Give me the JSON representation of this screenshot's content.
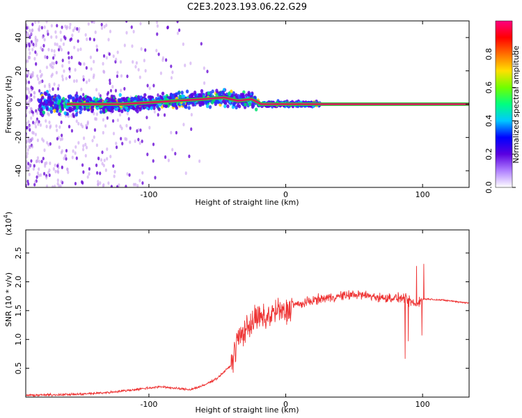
{
  "title": "C2E3.2023.193.06.22.G29",
  "colors": {
    "snr_line": "#ee3333",
    "freq_line_core": "#e0115f",
    "freq_line_outer": "#2ecc40",
    "scatter_purple": "#6a0dd6",
    "scatter_light": "#c9a0f0"
  },
  "chart_data": [
    {
      "type": "heatmap",
      "title": "C2E3.2023.193.06.22.G29",
      "xlabel": "Height of straight line (km)",
      "ylabel": "Frequency (Hz)",
      "xlim": [
        -190,
        134
      ],
      "ylim": [
        -50,
        50
      ],
      "xticks": [
        -100,
        0,
        100
      ],
      "yticks": [
        40,
        20,
        0,
        -20,
        -40
      ],
      "colorbar": {
        "label": "Normalized spectral amplitude",
        "range": [
          0,
          1
        ],
        "ticks": [
          "0.0",
          "0.2",
          "0.4",
          "0.6",
          "0.8"
        ],
        "tick_values": [
          0.0,
          0.2,
          0.4,
          0.6,
          0.8
        ],
        "colors": [
          "#ffffff",
          "#b080ff",
          "#5a00e0",
          "#0000ff",
          "#00c8ff",
          "#00ff80",
          "#70ff00",
          "#ffe000",
          "#ff7000",
          "#ff0000",
          "#ff0080"
        ]
      },
      "series": [
        {
          "name": "dominant frequency trace",
          "x": [
            -160,
            -140,
            -120,
            -100,
            -80,
            -60,
            -45,
            -35,
            -25,
            -18,
            -10,
            0,
            10,
            40,
            80,
            95,
            100,
            134
          ],
          "y": [
            0,
            0,
            0,
            1,
            2,
            3,
            4,
            2,
            3,
            0,
            0,
            0,
            0,
            0,
            0,
            0,
            0,
            0
          ]
        }
      ]
    },
    {
      "type": "line",
      "xlabel": "Height of straight line (km)",
      "ylabel": "SNR (10 * v/v)",
      "yscale_label": "(x10",
      "yscale_exp": "4",
      "yscale_close": ")",
      "xlim": [
        -190,
        134
      ],
      "ylim": [
        0,
        2.9
      ],
      "xticks": [
        -100,
        0,
        100
      ],
      "yticks": [
        "0.5",
        "1.0",
        "1.5",
        "2.0",
        "2.5"
      ],
      "ytick_values": [
        0.5,
        1.0,
        1.5,
        2.0,
        2.5
      ],
      "series": [
        {
          "name": "SNR",
          "x": [
            -190,
            -170,
            -150,
            -130,
            -110,
            -100,
            -90,
            -80,
            -70,
            -60,
            -50,
            -40,
            -35,
            -30,
            -25,
            -20,
            -15,
            -10,
            -5,
            0,
            5,
            10,
            20,
            30,
            40,
            50,
            60,
            70,
            80,
            85,
            90,
            95,
            100,
            105,
            110,
            120,
            134
          ],
          "y": [
            0.03,
            0.04,
            0.05,
            0.08,
            0.13,
            0.16,
            0.18,
            0.15,
            0.13,
            0.2,
            0.33,
            0.55,
            1.0,
            1.15,
            1.3,
            1.38,
            1.35,
            1.45,
            1.5,
            1.45,
            1.62,
            1.6,
            1.68,
            1.72,
            1.75,
            1.78,
            1.76,
            1.72,
            1.72,
            1.72,
            1.68,
            1.6,
            1.7,
            1.7,
            1.69,
            1.67,
            1.63
          ]
        }
      ]
    }
  ]
}
